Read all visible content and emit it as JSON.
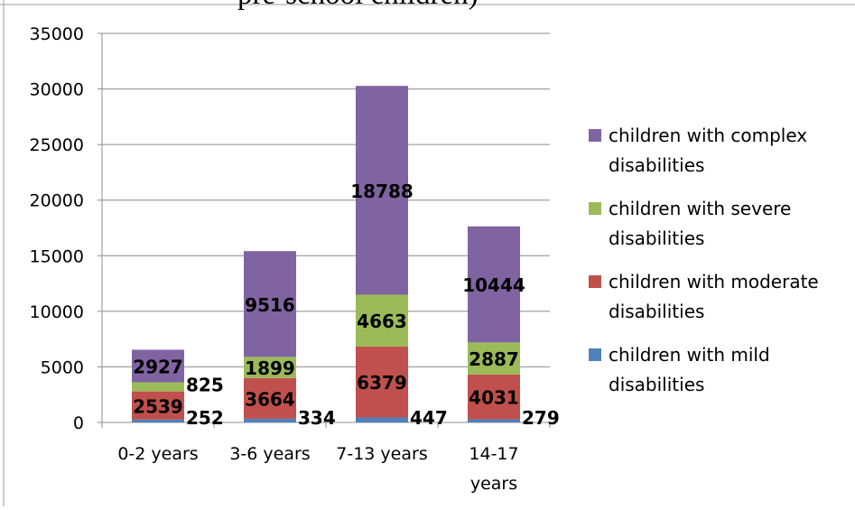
{
  "title_fragment": "pre-school children)",
  "chart_data": {
    "type": "bar",
    "stacked": true,
    "categories": [
      "0-2 years",
      "3-6 years",
      "7-13 years",
      "14-17 years"
    ],
    "series": [
      {
        "name": "children with mild disabilities",
        "values": [
          252,
          334,
          447,
          279
        ],
        "color": "#4F81BD"
      },
      {
        "name": "children with moderate disabilities",
        "values": [
          2539,
          3664,
          6379,
          4031
        ],
        "color": "#C0504D"
      },
      {
        "name": "children with severe disabilities",
        "values": [
          825,
          1899,
          4663,
          2887
        ],
        "color": "#9BBB59"
      },
      {
        "name": "children with complex disabilities",
        "values": [
          2927,
          9516,
          18788,
          10444
        ],
        "color": "#8064A2"
      }
    ],
    "ylim": [
      0,
      35000
    ],
    "yticks": [
      0,
      5000,
      10000,
      15000,
      20000,
      25000,
      30000,
      35000
    ],
    "grid": true,
    "legend_position": "right",
    "data_labels": true
  }
}
